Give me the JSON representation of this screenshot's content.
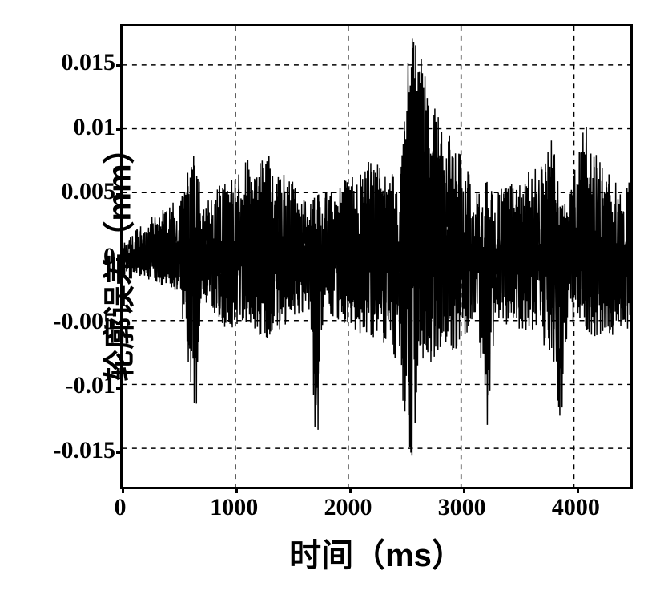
{
  "chart": {
    "type": "line-noisy-signal",
    "background_color": "#ffffff",
    "border_color": "#000000",
    "grid_color": "#000000",
    "line_color": "#000000",
    "line_width": 1.5,
    "xlabel": "时间（ms）",
    "ylabel": "轮廓误差（mm）",
    "label_fontsize": 40,
    "tick_fontsize": 30,
    "xlim": [
      0,
      4500
    ],
    "ylim": [
      -0.018,
      0.018
    ],
    "xticks": [
      0,
      1000,
      2000,
      3000,
      4000
    ],
    "yticks": [
      -0.015,
      -0.01,
      -0.005,
      0,
      0.005,
      0.01,
      0.015
    ],
    "ytick_labels": [
      "-0.015",
      "-0.01",
      "-0.005",
      "0",
      "0.005",
      "0.01",
      "0.015"
    ],
    "xtick_labels": [
      "0",
      "1000",
      "2000",
      "3000",
      "4000"
    ],
    "grid_dash": "6,6",
    "signal_envelope": [
      {
        "t": 0,
        "u": 0.001,
        "l": -0.001
      },
      {
        "t": 100,
        "u": 0.002,
        "l": -0.0015
      },
      {
        "t": 300,
        "u": 0.0035,
        "l": -0.002
      },
      {
        "t": 500,
        "u": 0.0045,
        "l": -0.003
      },
      {
        "t": 650,
        "u": 0.009,
        "l": -0.013
      },
      {
        "t": 700,
        "u": 0.004,
        "l": -0.0035
      },
      {
        "t": 900,
        "u": 0.006,
        "l": -0.0055
      },
      {
        "t": 1100,
        "u": 0.0075,
        "l": -0.006
      },
      {
        "t": 1300,
        "u": 0.008,
        "l": -0.0065
      },
      {
        "t": 1500,
        "u": 0.006,
        "l": -0.005
      },
      {
        "t": 1650,
        "u": 0.004,
        "l": -0.004
      },
      {
        "t": 1720,
        "u": 0.005,
        "l": -0.017
      },
      {
        "t": 1780,
        "u": 0.005,
        "l": -0.004
      },
      {
        "t": 1900,
        "u": 0.0055,
        "l": -0.005
      },
      {
        "t": 2100,
        "u": 0.007,
        "l": -0.006
      },
      {
        "t": 2300,
        "u": 0.008,
        "l": -0.0065
      },
      {
        "t": 2450,
        "u": 0.006,
        "l": -0.009
      },
      {
        "t": 2550,
        "u": 0.0175,
        "l": -0.017
      },
      {
        "t": 2650,
        "u": 0.016,
        "l": -0.008
      },
      {
        "t": 2800,
        "u": 0.011,
        "l": -0.0085
      },
      {
        "t": 3000,
        "u": 0.008,
        "l": -0.007
      },
      {
        "t": 3150,
        "u": 0.005,
        "l": -0.005
      },
      {
        "t": 3230,
        "u": 0.006,
        "l": -0.015
      },
      {
        "t": 3300,
        "u": 0.005,
        "l": -0.005
      },
      {
        "t": 3450,
        "u": 0.006,
        "l": -0.0055
      },
      {
        "t": 3650,
        "u": 0.007,
        "l": -0.006
      },
      {
        "t": 3820,
        "u": 0.0095,
        "l": -0.008
      },
      {
        "t": 3880,
        "u": 0.004,
        "l": -0.014
      },
      {
        "t": 3950,
        "u": 0.005,
        "l": -0.005
      },
      {
        "t": 4100,
        "u": 0.0105,
        "l": -0.006
      },
      {
        "t": 4250,
        "u": 0.007,
        "l": -0.0065
      },
      {
        "t": 4400,
        "u": 0.006,
        "l": -0.006
      },
      {
        "t": 4500,
        "u": 0.006,
        "l": -0.006
      }
    ],
    "noise_density": 900
  }
}
